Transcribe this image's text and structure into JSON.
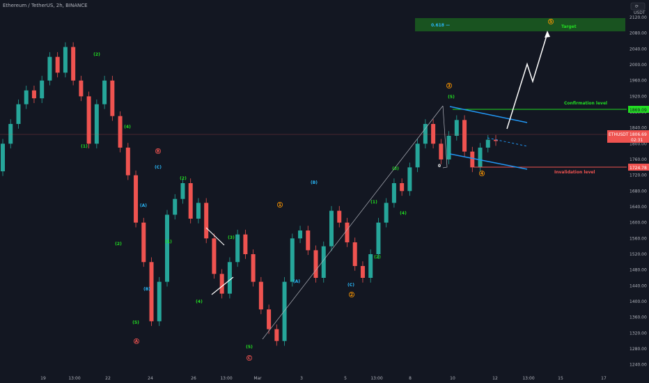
{
  "symbol_title": "Ethereum / TetherUS, 2h, BINANCE",
  "colors": {
    "background": "#131722",
    "bull": "#26a69a",
    "bear": "#ef5350",
    "green_label": "#22dd22",
    "blue_label": "#29b6f6",
    "orange_label": "#ff9800",
    "red_label": "#ef5350",
    "channel": "#2196f3",
    "target_zone": "#1b5e20"
  },
  "chart_data": {
    "type": "candlestick",
    "xlabel": "",
    "ylabel": "",
    "currency_label": "USDT",
    "ylim": [
      1220,
      2150
    ],
    "y_ticks": [
      1240,
      1280,
      1320,
      1360,
      1400,
      1440,
      1480,
      1520,
      1560,
      1600,
      1640,
      1680,
      1720,
      1760,
      1800,
      1840,
      1880,
      1920,
      1960,
      2000,
      2040,
      2080,
      2120
    ],
    "x_ticks": [
      "19",
      "13:00",
      "22",
      "24",
      "26",
      "13:00",
      "Mar",
      "3",
      "5",
      "13:00",
      "8",
      "10",
      "12",
      "13:00",
      "15",
      "17"
    ],
    "last_price": {
      "label": "ETHUSDT",
      "value": "1806.69",
      "timer": "02:31"
    },
    "confirmation": {
      "label": "Confirmation level",
      "value": "1869.09"
    },
    "invalidation": {
      "label": "Invalidation level",
      "value": "1724.78"
    },
    "target": {
      "label": "Target",
      "fib": "0.618 —"
    },
    "wave_labels": [
      {
        "text": "(2)",
        "color": "green"
      },
      {
        "text": "(1)",
        "color": "green"
      },
      {
        "text": "(4)",
        "color": "green"
      },
      {
        "text": "B",
        "color": "red"
      },
      {
        "text": "(C)",
        "color": "blue"
      },
      {
        "text": "(A)",
        "color": "blue"
      },
      {
        "text": "(2)",
        "color": "green"
      },
      {
        "text": "(B)",
        "color": "blue"
      },
      {
        "text": "(5)",
        "color": "green"
      },
      {
        "text": "A",
        "color": "red"
      },
      {
        "text": "(2)",
        "color": "green"
      },
      {
        "text": "(1)",
        "color": "green"
      },
      {
        "text": "(3)",
        "color": "green"
      },
      {
        "text": "(4)",
        "color": "green"
      },
      {
        "text": "(5)",
        "color": "green"
      },
      {
        "text": "C",
        "color": "red"
      },
      {
        "text": "1",
        "color": "orange"
      },
      {
        "text": "(B)",
        "color": "blue"
      },
      {
        "text": "(A)",
        "color": "blue"
      },
      {
        "text": "(C)",
        "color": "blue"
      },
      {
        "text": "2",
        "color": "orange"
      },
      {
        "text": "(1)",
        "color": "green"
      },
      {
        "text": "(2)",
        "color": "green"
      },
      {
        "text": "(3)",
        "color": "green"
      },
      {
        "text": "(4)",
        "color": "green"
      },
      {
        "text": "3",
        "color": "orange"
      },
      {
        "text": "(5)",
        "color": "green"
      },
      {
        "text": "4",
        "color": "orange"
      },
      {
        "text": "5",
        "color": "orange"
      },
      {
        "text": "0",
        "color": "white"
      }
    ],
    "series": [
      {
        "name": "ETHUSDT",
        "points": [
          [
            1730,
            1800
          ],
          [
            1800,
            1850
          ],
          [
            1850,
            1900
          ],
          [
            1900,
            1935
          ],
          [
            1935,
            1915
          ],
          [
            1915,
            1960
          ],
          [
            1960,
            2020
          ],
          [
            2020,
            1980
          ],
          [
            1980,
            2045
          ],
          [
            2045,
            1960
          ],
          [
            1960,
            1920
          ],
          [
            1920,
            1800
          ],
          [
            1800,
            1900
          ],
          [
            1900,
            1960
          ],
          [
            1960,
            1870
          ],
          [
            1870,
            1790
          ],
          [
            1790,
            1720
          ],
          [
            1720,
            1600
          ],
          [
            1600,
            1500
          ],
          [
            1500,
            1350
          ],
          [
            1350,
            1450
          ],
          [
            1450,
            1620
          ],
          [
            1620,
            1660
          ],
          [
            1660,
            1700
          ],
          [
            1700,
            1610
          ],
          [
            1610,
            1650
          ],
          [
            1650,
            1560
          ],
          [
            1560,
            1470
          ],
          [
            1470,
            1420
          ],
          [
            1420,
            1500
          ],
          [
            1500,
            1570
          ],
          [
            1570,
            1520
          ],
          [
            1520,
            1450
          ],
          [
            1450,
            1380
          ],
          [
            1380,
            1330
          ],
          [
            1330,
            1300
          ],
          [
            1300,
            1450
          ],
          [
            1450,
            1560
          ],
          [
            1560,
            1580
          ],
          [
            1580,
            1530
          ],
          [
            1530,
            1460
          ],
          [
            1460,
            1540
          ],
          [
            1540,
            1630
          ],
          [
            1630,
            1600
          ],
          [
            1600,
            1550
          ],
          [
            1550,
            1490
          ],
          [
            1490,
            1460
          ],
          [
            1460,
            1520
          ],
          [
            1520,
            1600
          ],
          [
            1600,
            1650
          ],
          [
            1650,
            1700
          ],
          [
            1700,
            1680
          ],
          [
            1680,
            1740
          ],
          [
            1740,
            1800
          ],
          [
            1800,
            1850
          ],
          [
            1850,
            1800
          ],
          [
            1800,
            1760
          ],
          [
            1760,
            1820
          ],
          [
            1820,
            1860
          ],
          [
            1860,
            1780
          ],
          [
            1780,
            1740
          ],
          [
            1740,
            1790
          ],
          [
            1790,
            1810
          ],
          [
            1810,
            1806.69
          ]
        ]
      }
    ]
  }
}
